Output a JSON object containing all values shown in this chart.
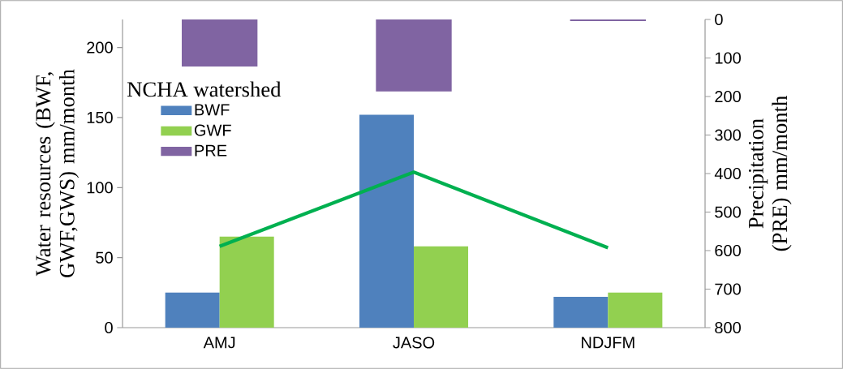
{
  "chart_data": {
    "type": "bar",
    "ylabel": "Water resources (BWF, GWF,GWS) mm/month",
    "y2label": "Precipitation (PRE) mm/month",
    "legend_title": "NCHA watershed",
    "categories": [
      "AMJ",
      "JASO",
      "NDJFM"
    ],
    "series": [
      {
        "name": "BWF",
        "color": "#4f81bd",
        "values": [
          25,
          152,
          22
        ]
      },
      {
        "name": "GWF",
        "color": "#92d050",
        "values": [
          65,
          58,
          25
        ]
      },
      {
        "name": "PRE",
        "color": "#8064a2",
        "axis": "y2",
        "values": [
          122,
          187,
          4
        ]
      },
      {
        "type": "line",
        "color": "#00b050",
        "values": [
          58,
          111,
          57
        ]
      }
    ],
    "ylim": [
      0,
      220
    ],
    "yticks": [
      0,
      50,
      100,
      150,
      200
    ],
    "y2lim": [
      800,
      0
    ],
    "y2ticks": [
      0,
      100,
      200,
      300,
      400,
      500,
      600,
      700,
      800
    ],
    "legend": "left",
    "grid": false
  }
}
